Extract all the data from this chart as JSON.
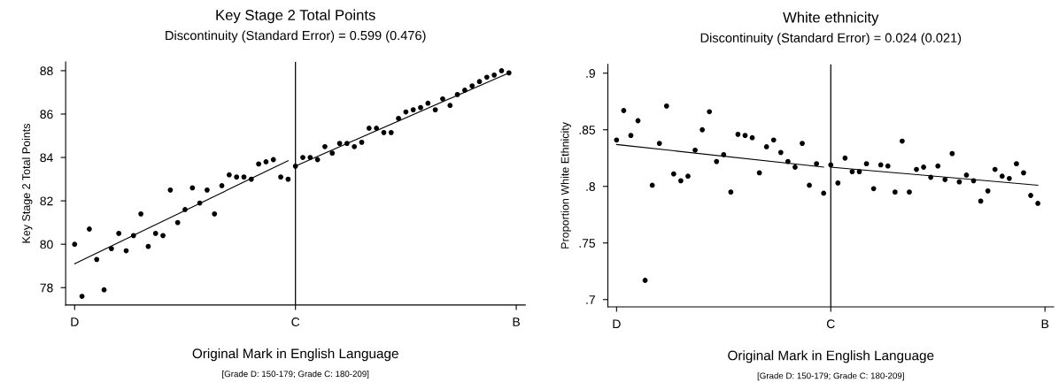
{
  "chart_data": [
    {
      "type": "scatter",
      "title": "Key Stage 2 Total Points",
      "subtitle": "Discontinuity (Standard Error) = 0.599 (0.476)",
      "xlabel": "Original Mark in English Language",
      "ylabel": "Key Stage 2 Total Points",
      "annotations": [
        "[Grade D: 150-179; Grade C: 180-209]"
      ],
      "categories": [
        "D",
        null,
        null,
        null,
        null,
        null,
        null,
        null,
        null,
        null,
        null,
        null,
        null,
        null,
        null,
        null,
        null,
        null,
        null,
        null,
        null,
        null,
        null,
        null,
        null,
        null,
        null,
        null,
        null,
        null,
        "C",
        null,
        null,
        null,
        null,
        null,
        null,
        null,
        null,
        null,
        null,
        null,
        null,
        null,
        null,
        null,
        null,
        null,
        null,
        null,
        null,
        null,
        null,
        null,
        null,
        null,
        null,
        null,
        null,
        null,
        "B"
      ],
      "ylim": [
        77.2,
        88.4
      ],
      "yticks": [
        78,
        80,
        82,
        84,
        86,
        88
      ],
      "marker": "circle",
      "ref_lines": [
        {
          "axis": "x",
          "value": "C",
          "color": "#000000"
        }
      ],
      "series": [
        {
          "color": "#000000",
          "values": [
            80.0,
            77.6,
            80.7,
            79.3,
            77.9,
            79.8,
            80.5,
            79.7,
            80.4,
            81.4,
            79.9,
            80.5,
            80.4,
            82.5,
            81.0,
            81.6,
            82.6,
            81.9,
            82.5,
            81.4,
            82.7,
            83.2,
            83.1,
            83.1,
            83.0,
            83.7,
            83.8,
            83.9,
            83.1,
            83.0,
            83.6,
            84.0,
            84.0,
            83.9,
            84.5,
            84.2,
            84.65,
            84.65,
            84.5,
            84.7,
            85.35,
            85.35,
            85.15,
            85.15,
            85.8,
            86.1,
            86.2,
            86.3,
            86.5,
            86.2,
            86.7,
            86.4,
            86.9,
            87.1,
            87.3,
            87.5,
            87.7,
            87.8,
            88.0,
            87.9,
            null
          ]
        },
        {
          "type": "line",
          "color": "#000000",
          "marker": "none",
          "line_style": "solid",
          "values": [
            79.1,
            null,
            null,
            null,
            null,
            null,
            null,
            null,
            null,
            null,
            null,
            null,
            null,
            null,
            null,
            null,
            null,
            null,
            null,
            null,
            null,
            null,
            null,
            null,
            null,
            null,
            null,
            null,
            null,
            83.85,
            null,
            null,
            null,
            null,
            null,
            null,
            null,
            null,
            null,
            null,
            null,
            null,
            null,
            null,
            null,
            null,
            null,
            null,
            null,
            null,
            null,
            null,
            null,
            null,
            null,
            null,
            null,
            null,
            null,
            null,
            null
          ]
        },
        {
          "type": "line",
          "color": "#000000",
          "marker": "none",
          "line_style": "solid",
          "values": [
            null,
            null,
            null,
            null,
            null,
            null,
            null,
            null,
            null,
            null,
            null,
            null,
            null,
            null,
            null,
            null,
            null,
            null,
            null,
            null,
            null,
            null,
            null,
            null,
            null,
            null,
            null,
            null,
            null,
            null,
            83.6,
            null,
            null,
            null,
            null,
            null,
            null,
            null,
            null,
            null,
            null,
            null,
            null,
            null,
            null,
            null,
            null,
            null,
            null,
            null,
            null,
            null,
            null,
            null,
            null,
            null,
            null,
            null,
            null,
            87.9,
            null
          ]
        }
      ]
    },
    {
      "type": "scatter",
      "title": "White ethnicity",
      "subtitle": "Discontinuity (Standard Error) = 0.024 (0.021)",
      "xlabel": "Original Mark in English Language",
      "ylabel": "Proportion White Ethnicity",
      "annotations": [
        "[Grade D: 150-179; Grade C: 180-209]"
      ],
      "categories": [
        "D",
        null,
        null,
        null,
        null,
        null,
        null,
        null,
        null,
        null,
        null,
        null,
        null,
        null,
        null,
        null,
        null,
        null,
        null,
        null,
        null,
        null,
        null,
        null,
        null,
        null,
        null,
        null,
        null,
        null,
        "C",
        null,
        null,
        null,
        null,
        null,
        null,
        null,
        null,
        null,
        null,
        null,
        null,
        null,
        null,
        null,
        null,
        null,
        null,
        null,
        null,
        null,
        null,
        null,
        null,
        null,
        null,
        null,
        null,
        null,
        "B"
      ],
      "ylim": [
        0.6935,
        0.9078
      ],
      "yticks": [
        {
          "value": 0.7,
          "label": ".7"
        },
        {
          "value": 0.75,
          "label": ".75"
        },
        {
          "value": 0.8,
          "label": ".8"
        },
        {
          "value": 0.85,
          "label": ".85"
        },
        {
          "value": 0.9,
          "label": ".9"
        }
      ],
      "marker": "circle",
      "ref_lines": [
        {
          "axis": "x",
          "value": "C",
          "color": "#000000"
        }
      ],
      "series": [
        {
          "color": "#000000",
          "values": [
            0.841,
            0.867,
            0.845,
            0.858,
            0.717,
            0.801,
            0.838,
            0.871,
            0.811,
            0.805,
            0.809,
            0.832,
            0.85,
            0.866,
            0.822,
            0.828,
            0.795,
            0.846,
            0.845,
            0.843,
            0.812,
            0.835,
            0.841,
            0.83,
            0.822,
            0.817,
            0.838,
            0.801,
            0.82,
            0.794,
            0.819,
            0.803,
            0.825,
            0.813,
            0.813,
            0.82,
            0.798,
            0.819,
            0.818,
            0.795,
            0.84,
            0.795,
            0.815,
            0.817,
            0.808,
            0.818,
            0.806,
            0.829,
            0.804,
            0.81,
            0.805,
            0.787,
            0.796,
            0.815,
            0.809,
            0.807,
            0.82,
            0.812,
            0.792,
            0.785,
            null
          ]
        },
        {
          "type": "line",
          "color": "#000000",
          "marker": "none",
          "line_style": "solid",
          "values": [
            0.837,
            null,
            null,
            null,
            null,
            null,
            null,
            null,
            null,
            null,
            null,
            null,
            null,
            null,
            null,
            null,
            null,
            null,
            null,
            null,
            null,
            null,
            null,
            null,
            null,
            null,
            null,
            null,
            null,
            0.817,
            null,
            null,
            null,
            null,
            null,
            null,
            null,
            null,
            null,
            null,
            null,
            null,
            null,
            null,
            null,
            null,
            null,
            null,
            null,
            null,
            null,
            null,
            null,
            null,
            null,
            null,
            null,
            null,
            null,
            null,
            null
          ]
        },
        {
          "type": "line",
          "color": "#000000",
          "marker": "none",
          "line_style": "solid",
          "values": [
            null,
            null,
            null,
            null,
            null,
            null,
            null,
            null,
            null,
            null,
            null,
            null,
            null,
            null,
            null,
            null,
            null,
            null,
            null,
            null,
            null,
            null,
            null,
            null,
            null,
            null,
            null,
            null,
            null,
            null,
            0.817,
            null,
            null,
            null,
            null,
            null,
            null,
            null,
            null,
            null,
            null,
            null,
            null,
            null,
            null,
            null,
            null,
            null,
            null,
            null,
            null,
            null,
            null,
            null,
            null,
            null,
            null,
            null,
            null,
            0.801,
            null
          ]
        }
      ]
    }
  ]
}
